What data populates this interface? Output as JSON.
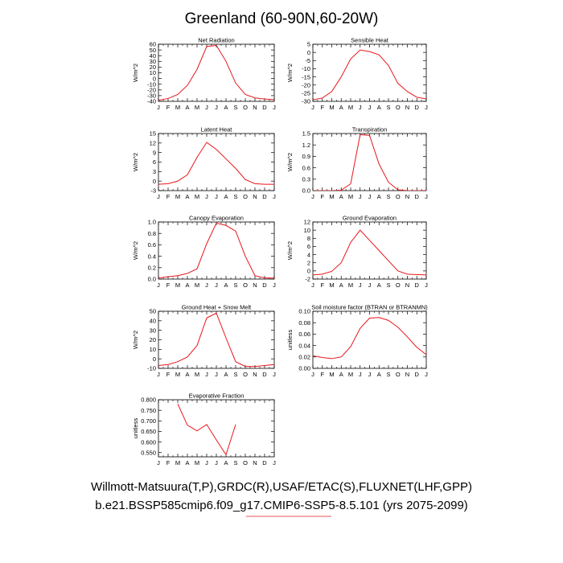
{
  "figure": {
    "title": "Greenland (60-90N,60-20W)",
    "caption_line1": "Willmott-Matsuura(T,P),GRDC(R),USAF/ETAC(S),FLUXNET(LHF,GPP)",
    "caption_line2": "b.e21.BSSP585cmip6.f09_g17.CMIP6-SSP5-8.5.101 (yrs 2075-2099)",
    "line_color": "#e8161a"
  },
  "chart_data": [
    {
      "type": "line",
      "title": "Net Radiation",
      "ylabel": "W/m^2",
      "categories": [
        "J",
        "F",
        "M",
        "A",
        "M",
        "J",
        "J",
        "A",
        "S",
        "O",
        "N",
        "D",
        "J"
      ],
      "ylim": [
        -40,
        60
      ],
      "yticks": [
        -40,
        -30,
        -20,
        -10,
        0,
        10,
        20,
        30,
        40,
        50,
        60
      ],
      "ytick_labels": [
        "-40",
        "-30",
        "-20",
        "-10",
        "0",
        "10",
        "20",
        "30",
        "40",
        "50",
        "60"
      ],
      "values": [
        -38,
        -35,
        -28,
        -12,
        16,
        56,
        58,
        30,
        -8,
        -28,
        -34,
        -36,
        -37
      ]
    },
    {
      "type": "line",
      "title": "Sensible Heat",
      "ylabel": "W/m^2",
      "categories": [
        "J",
        "F",
        "M",
        "A",
        "M",
        "J",
        "J",
        "A",
        "S",
        "O",
        "N",
        "D",
        "J"
      ],
      "ylim": [
        -30,
        5
      ],
      "yticks": [
        -30,
        -25,
        -20,
        -15,
        -10,
        -5,
        0,
        5
      ],
      "ytick_labels": [
        "-30",
        "-25",
        "-20",
        "-15",
        "-10",
        "-5",
        "0",
        "5"
      ],
      "values": [
        -29,
        -28,
        -24,
        -15,
        -4,
        1.5,
        0.5,
        -1.5,
        -8,
        -19,
        -24,
        -27.5,
        -28.5
      ]
    },
    {
      "type": "line",
      "title": "Latent Heat",
      "ylabel": "W/m^2",
      "categories": [
        "J",
        "F",
        "M",
        "A",
        "M",
        "J",
        "J",
        "A",
        "S",
        "O",
        "N",
        "D",
        "J"
      ],
      "ylim": [
        -3,
        15
      ],
      "yticks": [
        -3,
        0,
        3,
        6,
        9,
        12,
        15
      ],
      "ytick_labels": [
        "-3",
        "0",
        "3",
        "6",
        "9",
        "12",
        "15"
      ],
      "values": [
        -1,
        -0.8,
        0,
        2,
        7.5,
        12.2,
        10,
        7,
        4,
        0.5,
        -0.8,
        -1,
        -1
      ]
    },
    {
      "type": "line",
      "title": "Transpiration",
      "ylabel": "W/m^2",
      "categories": [
        "J",
        "F",
        "M",
        "A",
        "M",
        "J",
        "J",
        "A",
        "S",
        "O",
        "N",
        "D",
        "J"
      ],
      "ylim": [
        0,
        1.5
      ],
      "yticks": [
        0,
        0.3,
        0.6,
        0.9,
        1.2,
        1.5
      ],
      "ytick_labels": [
        "0.0",
        "0.3",
        "0.6",
        "0.9",
        "1.2",
        "1.5"
      ],
      "values": [
        0,
        0,
        0,
        0.01,
        0.18,
        1.47,
        1.45,
        0.7,
        0.22,
        0.02,
        0,
        0,
        0
      ]
    },
    {
      "type": "line",
      "title": "Canopy Evaporation",
      "ylabel": "W/m^2",
      "categories": [
        "J",
        "F",
        "M",
        "A",
        "M",
        "J",
        "J",
        "A",
        "S",
        "O",
        "N",
        "D",
        "J"
      ],
      "ylim": [
        0,
        1
      ],
      "yticks": [
        0,
        0.2,
        0.4,
        0.6,
        0.8,
        1.0
      ],
      "ytick_labels": [
        "0.0",
        "0.2",
        "0.4",
        "0.6",
        "0.8",
        "1.0"
      ],
      "values": [
        0.02,
        0.04,
        0.06,
        0.1,
        0.18,
        0.62,
        0.98,
        0.94,
        0.84,
        0.4,
        0.06,
        0.02,
        0.02
      ]
    },
    {
      "type": "line",
      "title": "Ground Evaporation",
      "ylabel": "W/m^2",
      "categories": [
        "J",
        "F",
        "M",
        "A",
        "M",
        "J",
        "J",
        "A",
        "S",
        "O",
        "N",
        "D",
        "J"
      ],
      "ylim": [
        -2,
        12
      ],
      "yticks": [
        -2,
        0,
        2,
        4,
        6,
        8,
        10,
        12
      ],
      "ytick_labels": [
        "-2",
        "0",
        "2",
        "4",
        "6",
        "8",
        "10",
        "12"
      ],
      "values": [
        -1,
        -0.8,
        -0.1,
        2,
        7,
        10,
        7.5,
        5,
        2.5,
        0,
        -0.8,
        -0.9,
        -1
      ]
    },
    {
      "type": "line",
      "title": "Ground Heat + Snow Melt",
      "ylabel": "W/m^2",
      "categories": [
        "J",
        "F",
        "M",
        "A",
        "M",
        "J",
        "J",
        "A",
        "S",
        "O",
        "N",
        "D",
        "J"
      ],
      "ylim": [
        -10,
        50
      ],
      "yticks": [
        -10,
        0,
        10,
        20,
        30,
        40,
        50
      ],
      "ytick_labels": [
        "-10",
        "0",
        "10",
        "20",
        "30",
        "40",
        "50"
      ],
      "values": [
        -7,
        -6,
        -3,
        2,
        14,
        43,
        48,
        22,
        -3,
        -8,
        -8,
        -7,
        -6
      ]
    },
    {
      "type": "line",
      "title": "Soil moisture factor (BTRAN or BTRANMN)",
      "ylabel": "unitless",
      "categories": [
        "J",
        "F",
        "M",
        "A",
        "M",
        "J",
        "J",
        "A",
        "S",
        "O",
        "N",
        "D",
        "J"
      ],
      "ylim": [
        0,
        0.1
      ],
      "yticks": [
        0,
        0.02,
        0.04,
        0.06,
        0.08,
        0.1
      ],
      "ytick_labels": [
        "0.00",
        "0.02",
        "0.04",
        "0.06",
        "0.08",
        "0.10"
      ],
      "values": [
        0.022,
        0.019,
        0.017,
        0.02,
        0.038,
        0.07,
        0.088,
        0.089,
        0.084,
        0.072,
        0.055,
        0.037,
        0.024
      ]
    },
    {
      "type": "line",
      "title": "Evaporative Fraction",
      "ylabel": "unitless",
      "categories": [
        "J",
        "F",
        "M",
        "A",
        "M",
        "J",
        "J",
        "A",
        "S",
        "O",
        "N",
        "D",
        "J"
      ],
      "ylim": [
        0.53,
        0.8
      ],
      "yticks": [
        0.55,
        0.6,
        0.65,
        0.7,
        0.75,
        0.8
      ],
      "ytick_labels": [
        "0.550",
        "0.600",
        "0.650",
        "0.700",
        "0.750",
        "0.800"
      ],
      "values": [
        null,
        null,
        0.78,
        0.68,
        0.653,
        0.683,
        0.61,
        0.54,
        0.683,
        null,
        null,
        null,
        null
      ]
    }
  ]
}
